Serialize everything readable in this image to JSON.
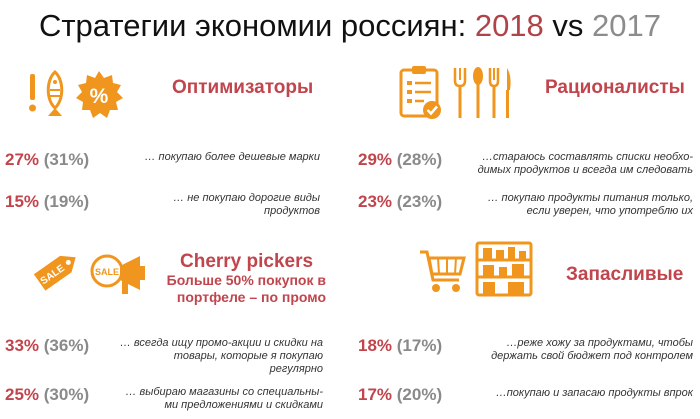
{
  "header": {
    "title_main": "Стратегии экономии россиян:",
    "year_2018": "2018",
    "vs": "vs",
    "year_2017": "2017"
  },
  "colors": {
    "accent_red": "#c0454c",
    "icon_orange": "#f0961e",
    "gray": "#8a8a8a"
  },
  "icons": {
    "optimizers": [
      "exclamation-fish-icon",
      "percent-badge-icon"
    ],
    "rationalists": [
      "checklist-clipboard-icon",
      "cutlery-icon"
    ],
    "cherry": [
      "sale-tag-icon",
      "sale-megaphone-icon"
    ],
    "hoarders": [
      "shopping-cart-icon",
      "pantry-shelf-icon"
    ]
  },
  "optimizers": {
    "title": "Оптимизаторы",
    "items": [
      {
        "v2018": "27%",
        "v2017": "(31%)",
        "line1": "… покупаю более дешевые марки",
        "line2": ""
      },
      {
        "v2018": "15%",
        "v2017": "(19%)",
        "line1": "…  не покупаю дорогие виды",
        "line2": "продуктов"
      }
    ]
  },
  "rationalists": {
    "title": "Рационалисты",
    "items": [
      {
        "v2018": "29%",
        "v2017": "(28%)",
        "line1": "…стараюсь составлять списки необхо-",
        "line2": "димых продуктов и всегда им следовать"
      },
      {
        "v2018": "23%",
        "v2017": "(23%)",
        "line1": "… покупаю продукты питания только,",
        "line2": "если уверен, что употреблю их"
      }
    ]
  },
  "cherry": {
    "title": "Cherry pickers",
    "subtitle_line1": "Больше 50% покупок в",
    "subtitle_line2": "портфеле – по промо",
    "items": [
      {
        "v2018": "33%",
        "v2017": "(36%)",
        "line1": "… всегда ищу промо-акции и скидки на",
        "line2": "товары, которые я покупаю",
        "line3": "регулярно"
      },
      {
        "v2018": "25%",
        "v2017": "(30%)",
        "line1": "… выбираю магазины со специальны-",
        "line2": "ми предложениями и скидками",
        "line3": ""
      }
    ]
  },
  "hoarders": {
    "title": "Запасливые",
    "items": [
      {
        "v2018": "18%",
        "v2017": "(17%)",
        "line1": "…реже хожу за продуктами, чтобы",
        "line2": "держать свой бюджет под контролем"
      },
      {
        "v2018": "17%",
        "v2017": "(20%)",
        "line1": "…покупаю и запасаю продукты впрок",
        "line2": ""
      }
    ]
  }
}
